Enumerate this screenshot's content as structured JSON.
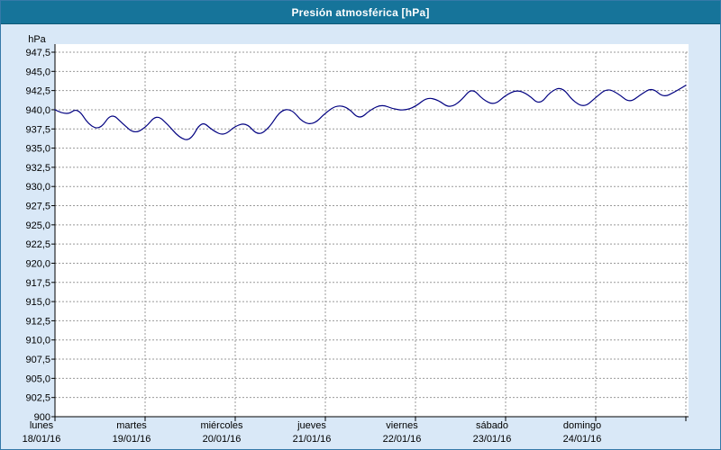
{
  "window": {
    "title": "Presión atmosférica [hPa]"
  },
  "colors": {
    "title_bar": "#16749a",
    "title_text": "#ffffff",
    "frame_bg": "#d9e8f7",
    "plot_bg": "#ffffff",
    "grid": "#999999",
    "axis": "#000000",
    "line": "#000080",
    "label": "#000000",
    "border": "#3579a8"
  },
  "chart_data": {
    "type": "line",
    "title": "Presión atmosférica [hPa]",
    "y_unit": "hPa",
    "ylim": [
      900,
      947.5
    ],
    "ytick_step": 2.5,
    "ytick_labels_top_to_bottom": [
      "947,5",
      "945,0",
      "942,5",
      "940,0",
      "937,5",
      "935,0",
      "932,5",
      "930,0",
      "927,5",
      "925,0",
      "922,5",
      "920,0",
      "917,5",
      "915,0",
      "912,5",
      "910,0",
      "907,5",
      "905,0",
      "902,5",
      "900"
    ],
    "x_axis_days": [
      {
        "name": "lunes",
        "date": "18/01/16"
      },
      {
        "name": "martes",
        "date": "19/01/16"
      },
      {
        "name": "miércoles",
        "date": "20/01/16"
      },
      {
        "name": "jueves",
        "date": "21/01/16"
      },
      {
        "name": "viernes",
        "date": "22/01/16"
      },
      {
        "name": "sábado",
        "date": "23/01/16"
      },
      {
        "name": "domingo",
        "date": "24/01/16"
      }
    ],
    "sampling_hours": 3,
    "grid": "dashed",
    "legend": "none",
    "series": [
      {
        "name": "Presión atmosférica",
        "unit": "hPa",
        "values": [
          940.0,
          939.2,
          940.3,
          938.0,
          937.4,
          939.6,
          938.2,
          936.9,
          937.6,
          939.4,
          938.1,
          936.4,
          935.9,
          938.6,
          937.3,
          936.6,
          937.9,
          938.3,
          936.6,
          937.6,
          939.9,
          940.1,
          938.3,
          938.1,
          939.6,
          940.6,
          940.3,
          938.7,
          940.0,
          940.7,
          940.1,
          939.9,
          940.4,
          941.6,
          941.3,
          940.2,
          941.1,
          942.9,
          941.3,
          940.6,
          941.9,
          942.6,
          942.0,
          940.6,
          942.4,
          943.0,
          941.1,
          940.3,
          941.6,
          942.8,
          942.1,
          940.9,
          942.0,
          942.9,
          941.6,
          942.3,
          943.2
        ]
      }
    ]
  }
}
